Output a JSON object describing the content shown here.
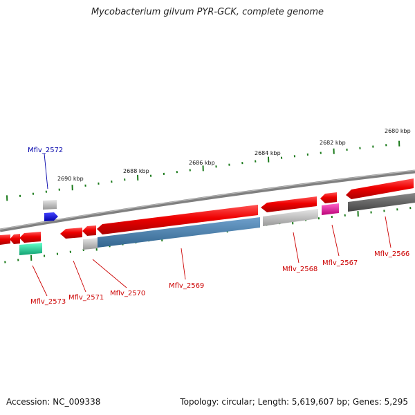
{
  "title": "Mycobacterium gilvum PYR-GCK, complete genome",
  "footer": {
    "accession": "Accession: NC_009338",
    "summary": "Topology: circular; Length: 5,619,607 bp; Genes: 5,295"
  },
  "scale_labels": [
    "2680 kbp",
    "2682 kbp",
    "2684 kbp",
    "2686 kbp",
    "2688 kbp",
    "2690 kbp"
  ],
  "gene_labels": [
    {
      "id": "Mflv_2566",
      "color": "#cc0000"
    },
    {
      "id": "Mflv_2567",
      "color": "#cc0000"
    },
    {
      "id": "Mflv_2568",
      "color": "#cc0000"
    },
    {
      "id": "Mflv_2569",
      "color": "#cc0000"
    },
    {
      "id": "Mflv_2570",
      "color": "#cc0000"
    },
    {
      "id": "Mflv_2571",
      "color": "#cc0000"
    },
    {
      "id": "Mflv_2572",
      "color": "#0000aa"
    },
    {
      "id": "Mflv_2573",
      "color": "#cc0000"
    }
  ],
  "colors": {
    "backbone": "#808080",
    "cds": "#ee0000",
    "tick": "#1a7a1a",
    "blue_feature": "#0000ee",
    "steelblue_feature": "#4682b4",
    "magenta_feature": "#ee1199",
    "teal_feature": "#20d890",
    "grey_feature": "#bbbbbb",
    "dark_feature": "#555555"
  }
}
